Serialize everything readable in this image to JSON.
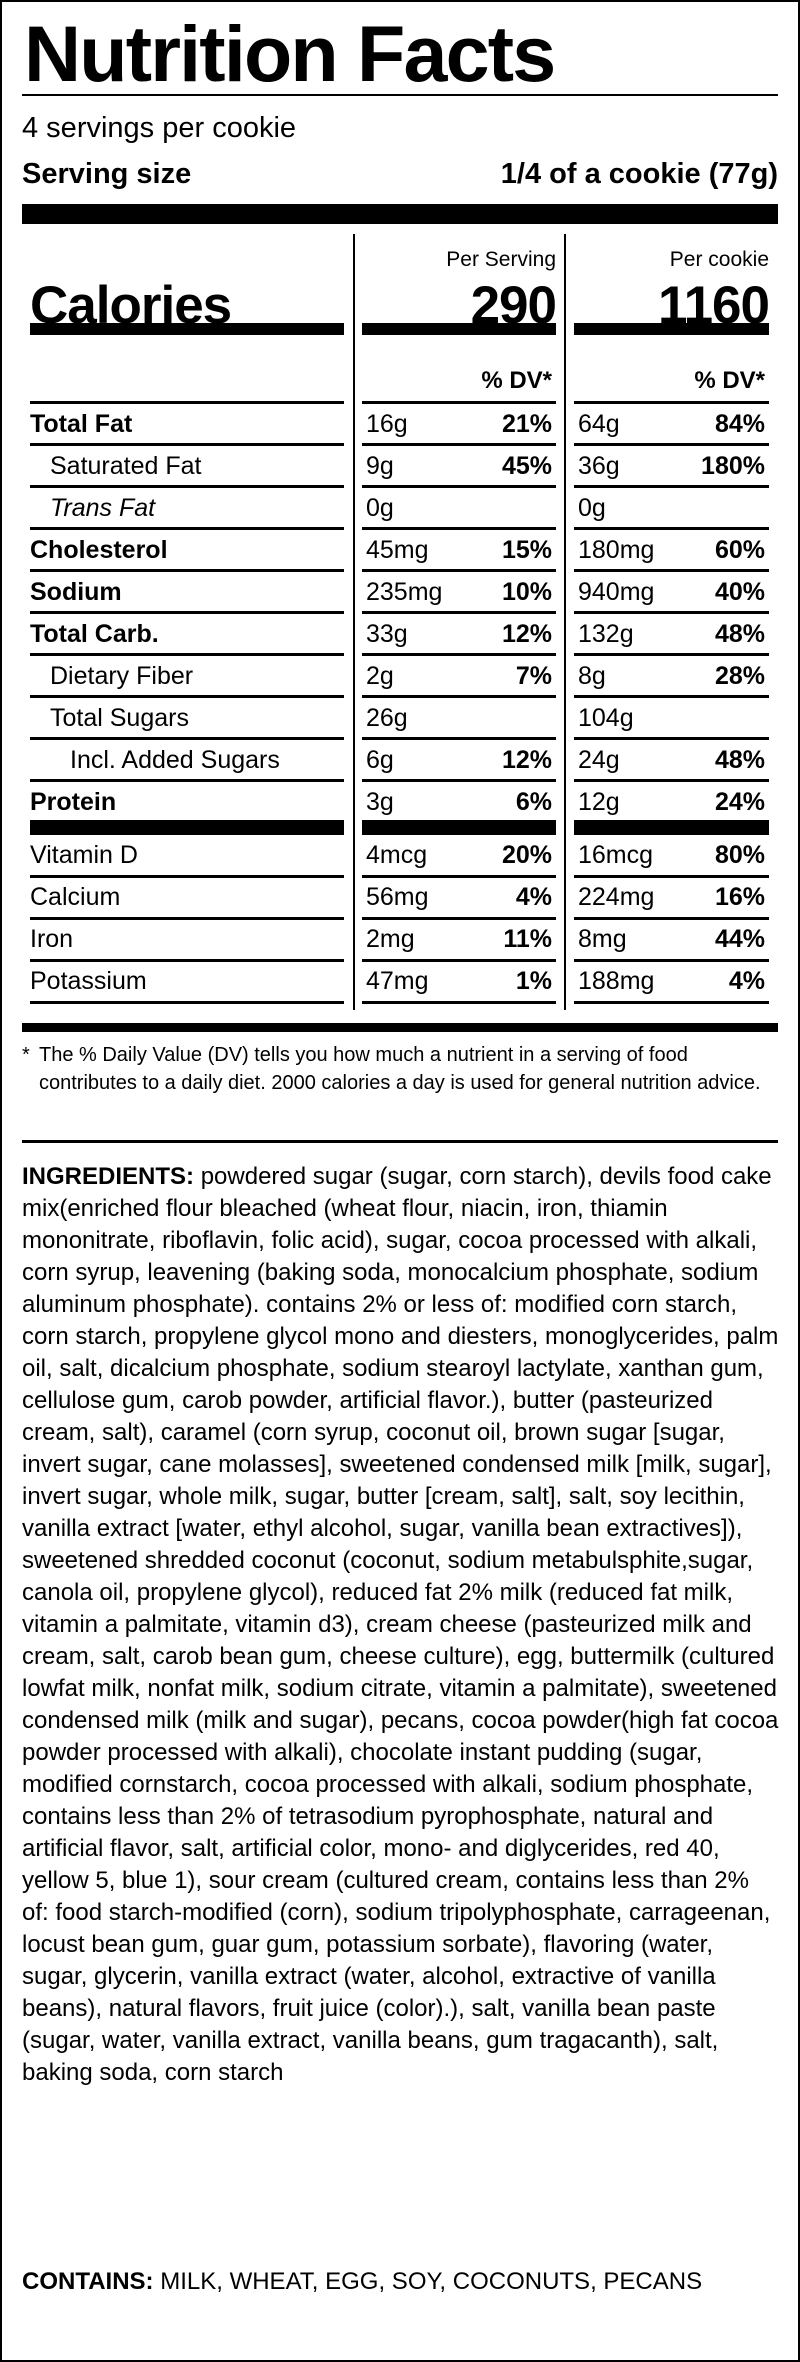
{
  "title": "Nutrition Facts",
  "servings_per_container": "4 servings per cookie",
  "serving_size": {
    "label": "Serving size",
    "value": "1/4 of a cookie (77g)"
  },
  "columns": [
    {
      "header": "Per Serving",
      "calories": "290",
      "dv_header": "% DV*"
    },
    {
      "header": "Per cookie",
      "calories": "1160",
      "dv_header": "% DV*"
    }
  ],
  "calories_label": "Calories",
  "nutrients": [
    {
      "name": "Total Fat",
      "style": "bold",
      "indent": 0,
      "serving": {
        "amount": "16g",
        "dv": "21%"
      },
      "cookie": {
        "amount": "64g",
        "dv": "84%"
      }
    },
    {
      "name": "Saturated Fat",
      "style": "normal",
      "indent": 1,
      "serving": {
        "amount": "9g",
        "dv": "45%"
      },
      "cookie": {
        "amount": "36g",
        "dv": "180%"
      }
    },
    {
      "name": "Trans Fat",
      "style": "italic",
      "indent": 1,
      "serving": {
        "amount": "0g",
        "dv": ""
      },
      "cookie": {
        "amount": "0g",
        "dv": ""
      }
    },
    {
      "name": "Cholesterol",
      "style": "bold",
      "indent": 0,
      "serving": {
        "amount": "45mg",
        "dv": "15%"
      },
      "cookie": {
        "amount": "180mg",
        "dv": "60%"
      }
    },
    {
      "name": "Sodium",
      "style": "bold",
      "indent": 0,
      "serving": {
        "amount": "235mg",
        "dv": "10%"
      },
      "cookie": {
        "amount": "940mg",
        "dv": "40%"
      }
    },
    {
      "name": "Total Carb.",
      "style": "bold",
      "indent": 0,
      "serving": {
        "amount": "33g",
        "dv": "12%"
      },
      "cookie": {
        "amount": "132g",
        "dv": "48%"
      }
    },
    {
      "name": "Dietary Fiber",
      "style": "normal",
      "indent": 1,
      "serving": {
        "amount": "2g",
        "dv": "7%"
      },
      "cookie": {
        "amount": "8g",
        "dv": "28%"
      }
    },
    {
      "name": "Total Sugars",
      "style": "normal",
      "indent": 1,
      "serving": {
        "amount": "26g",
        "dv": ""
      },
      "cookie": {
        "amount": "104g",
        "dv": ""
      }
    },
    {
      "name": "Incl. Added Sugars",
      "style": "normal",
      "indent": 2,
      "serving": {
        "amount": "6g",
        "dv": "12%"
      },
      "cookie": {
        "amount": "24g",
        "dv": "48%"
      }
    },
    {
      "name": "Protein",
      "style": "bold",
      "indent": 0,
      "serving": {
        "amount": "3g",
        "dv": "6%"
      },
      "cookie": {
        "amount": "12g",
        "dv": "24%"
      }
    }
  ],
  "vitamins": [
    {
      "name": "Vitamin D",
      "serving": {
        "amount": "4mcg",
        "dv": "20%"
      },
      "cookie": {
        "amount": "16mcg",
        "dv": "80%"
      }
    },
    {
      "name": "Calcium",
      "serving": {
        "amount": "56mg",
        "dv": "4%"
      },
      "cookie": {
        "amount": "224mg",
        "dv": "16%"
      }
    },
    {
      "name": "Iron",
      "serving": {
        "amount": "2mg",
        "dv": "11%"
      },
      "cookie": {
        "amount": "8mg",
        "dv": "44%"
      }
    },
    {
      "name": "Potassium",
      "serving": {
        "amount": "47mg",
        "dv": "1%"
      },
      "cookie": {
        "amount": "188mg",
        "dv": "4%"
      }
    }
  ],
  "footnote": {
    "marker": "*",
    "text": "The % Daily Value (DV) tells you how much a nutrient in a serving of food contributes to a daily diet. 2000 calories a day is used for general nutrition advice."
  },
  "ingredients": {
    "label": "INGREDIENTS:",
    "text": "powdered sugar (sugar, corn starch), devils food cake mix(enriched flour bleached (wheat flour, niacin, iron, thiamin mononitrate, riboflavin, folic acid), sugar, cocoa processed with alkali, corn syrup, leavening (baking soda, monocalcium phosphate, sodium aluminum phosphate). contains 2% or less of: modified corn starch, corn starch, propylene glycol mono and diesters, monoglycerides, palm oil, salt, dicalcium phosphate, sodium stearoyl lactylate, xanthan gum, cellulose gum, carob powder, artificial flavor.), butter (pasteurized cream, salt), caramel (corn syrup, coconut oil, brown sugar [sugar, invert sugar, cane molasses], sweetened condensed milk [milk, sugar], invert sugar, whole milk, sugar, butter [cream, salt], salt, soy lecithin, vanilla extract [water, ethyl alcohol, sugar, vanilla bean extractives]), sweetened shredded coconut (coconut, sodium metabulsphite,sugar, canola oil, propylene glycol), reduced fat 2% milk (reduced fat milk, vitamin a palmitate, vitamin d3), cream cheese (pasteurized milk and cream, salt, carob bean gum, cheese culture), egg, buttermilk (cultured lowfat milk, nonfat milk, sodium citrate, vitamin a palmitate), sweetened condensed milk (milk and sugar), pecans, cocoa powder(high fat cocoa powder processed with alkali), chocolate instant pudding (sugar, modified cornstarch, cocoa processed with alkali, sodium phosphate, contains less than 2% of tetrasodium pyrophosphate, natural and artificial flavor, salt, artificial color, mono- and diglycerides, red 40, yellow 5, blue 1), sour cream (cultured cream, contains less than 2% of: food starch-modified (corn), sodium tripolyphosphate, carrageenan, locust bean gum, guar gum, potassium sorbate), flavoring (water, sugar, glycerin, vanilla extract (water, alcohol, extractive of vanilla beans), natural flavors, fruit juice (color).), salt, vanilla bean paste (sugar, water, vanilla extract, vanilla beans, gum tragacanth), salt, baking soda, corn starch"
  },
  "contains": {
    "label": "CONTAINS:",
    "text": "MILK, WHEAT, EGG, SOY, COCONUTS, PECANS"
  }
}
